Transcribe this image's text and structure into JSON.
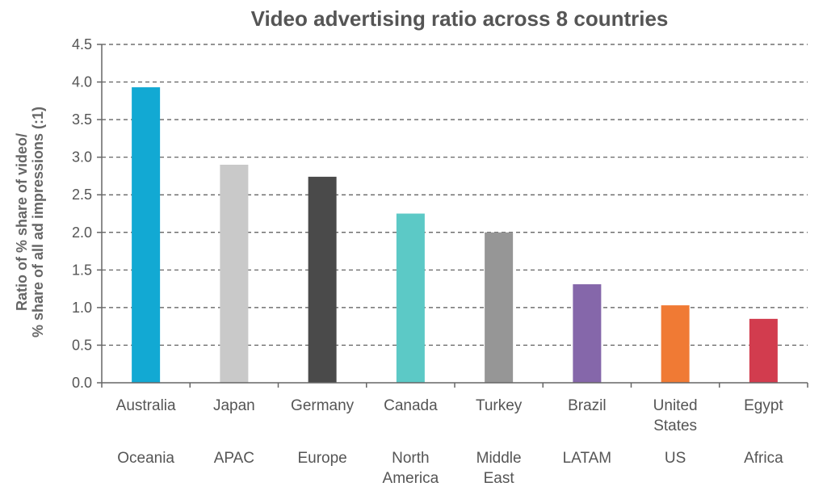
{
  "chart_data": {
    "type": "bar",
    "title": "Video advertising ratio across 8 countries",
    "ylabel_lines": [
      "Ratio of % share of video/",
      "% share of all ad impressions (:1)"
    ],
    "xlabel": "",
    "ylim": [
      0,
      4.5
    ],
    "ytick_step": 0.5,
    "yticks": [
      "0.0",
      "0.5",
      "1.0",
      "1.5",
      "2.0",
      "2.5",
      "3.0",
      "3.5",
      "4.0",
      "4.5"
    ],
    "grid": "horizontal-dashed",
    "categories": [
      [
        "Australia"
      ],
      [
        "Japan"
      ],
      [
        "Germany"
      ],
      [
        "Canada"
      ],
      [
        "Turkey"
      ],
      [
        "Brazil"
      ],
      [
        "United",
        "States"
      ],
      [
        "Egypt"
      ]
    ],
    "regions": [
      [
        "Oceania"
      ],
      [
        "APAC"
      ],
      [
        "Europe"
      ],
      [
        "North",
        "America"
      ],
      [
        "Middle",
        "East"
      ],
      [
        "LATAM"
      ],
      [
        "US"
      ],
      [
        "Africa"
      ]
    ],
    "values": [
      3.93,
      2.9,
      2.74,
      2.25,
      2.0,
      1.31,
      1.03,
      0.85
    ],
    "colors": [
      "#12a9d3",
      "#c9c9c9",
      "#4a4a4a",
      "#5cc9c6",
      "#969696",
      "#8567aa",
      "#f07a34",
      "#d23c4e"
    ]
  }
}
